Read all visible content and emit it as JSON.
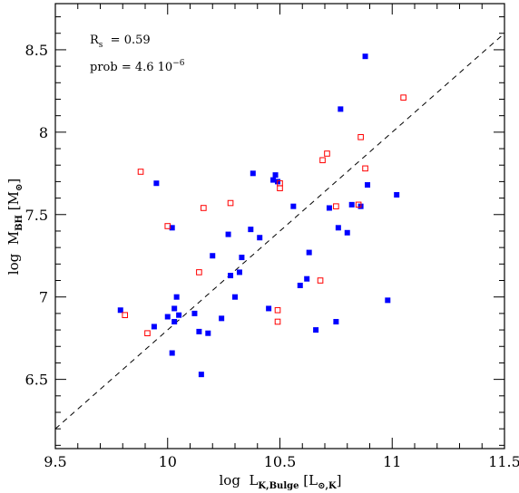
{
  "chart_data": {
    "type": "scatter",
    "title": "",
    "xlabel": {
      "main": "log  L",
      "sub": "K,Bulge",
      "bracket_open": " [L",
      "bracket_sub": "⊙,K",
      "bracket_close": "]"
    },
    "ylabel": {
      "main": "log  M",
      "sub": "BH",
      "bracket_open": " [M",
      "bracket_sub": "⊙",
      "bracket_close": "]"
    },
    "xlim": [
      9.5,
      11.5
    ],
    "ylim": [
      6.08,
      8.78
    ],
    "xticks": [
      9.5,
      10,
      10.5,
      11,
      11.5
    ],
    "xtick_labels": [
      "9.5",
      "10",
      "10.5",
      "11",
      "11.5"
    ],
    "yticks": [
      6.5,
      7,
      7.5,
      8,
      8.5
    ],
    "ytick_labels": [
      "6.5",
      "7",
      "7.5",
      "8",
      "8.5"
    ],
    "grid": false,
    "annotations": [
      {
        "base": "R",
        "sub": "s",
        "rest": "  = 0.59"
      },
      {
        "base": "prob = 4.6 10",
        "sup": "−6"
      }
    ],
    "fit_line": {
      "style": "dashed",
      "points": [
        [
          9.5,
          6.2
        ],
        [
          11.5,
          8.6
        ]
      ]
    },
    "series": [
      {
        "marker": "filled-square",
        "color": "#0000ff",
        "points": [
          [
            9.79,
            6.92
          ],
          [
            9.94,
            6.82
          ],
          [
            9.95,
            7.69
          ],
          [
            10.0,
            6.88
          ],
          [
            10.02,
            7.42
          ],
          [
            10.02,
            6.66
          ],
          [
            10.03,
            6.85
          ],
          [
            10.03,
            6.93
          ],
          [
            10.04,
            7.0
          ],
          [
            10.05,
            6.89
          ],
          [
            10.12,
            6.9
          ],
          [
            10.14,
            6.79
          ],
          [
            10.15,
            6.53
          ],
          [
            10.18,
            6.78
          ],
          [
            10.2,
            7.25
          ],
          [
            10.24,
            6.87
          ],
          [
            10.27,
            7.38
          ],
          [
            10.28,
            7.13
          ],
          [
            10.3,
            7.0
          ],
          [
            10.32,
            7.15
          ],
          [
            10.33,
            7.24
          ],
          [
            10.37,
            7.41
          ],
          [
            10.38,
            7.75
          ],
          [
            10.41,
            7.36
          ],
          [
            10.45,
            6.93
          ],
          [
            10.47,
            7.71
          ],
          [
            10.48,
            7.74
          ],
          [
            10.49,
            7.7
          ],
          [
            10.56,
            7.55
          ],
          [
            10.59,
            7.07
          ],
          [
            10.62,
            7.11
          ],
          [
            10.63,
            7.27
          ],
          [
            10.66,
            6.8
          ],
          [
            10.72,
            7.54
          ],
          [
            10.75,
            6.85
          ],
          [
            10.76,
            7.42
          ],
          [
            10.77,
            8.14
          ],
          [
            10.8,
            7.39
          ],
          [
            10.82,
            7.56
          ],
          [
            10.86,
            7.55
          ],
          [
            10.88,
            8.46
          ],
          [
            10.89,
            7.68
          ],
          [
            10.98,
            6.98
          ],
          [
            11.02,
            7.62
          ]
        ]
      },
      {
        "marker": "open-square",
        "color": "#ff0000",
        "points": [
          [
            9.81,
            6.89
          ],
          [
            9.88,
            7.76
          ],
          [
            9.91,
            6.78
          ],
          [
            10.0,
            7.43
          ],
          [
            10.14,
            7.15
          ],
          [
            10.16,
            7.54
          ],
          [
            10.28,
            7.57
          ],
          [
            10.49,
            6.92
          ],
          [
            10.49,
            6.85
          ],
          [
            10.5,
            7.69
          ],
          [
            10.5,
            7.66
          ],
          [
            10.68,
            7.1
          ],
          [
            10.69,
            7.83
          ],
          [
            10.71,
            7.87
          ],
          [
            10.75,
            7.55
          ],
          [
            10.85,
            7.56
          ],
          [
            10.86,
            7.97
          ],
          [
            10.88,
            7.78
          ],
          [
            11.05,
            8.21
          ]
        ]
      }
    ]
  }
}
